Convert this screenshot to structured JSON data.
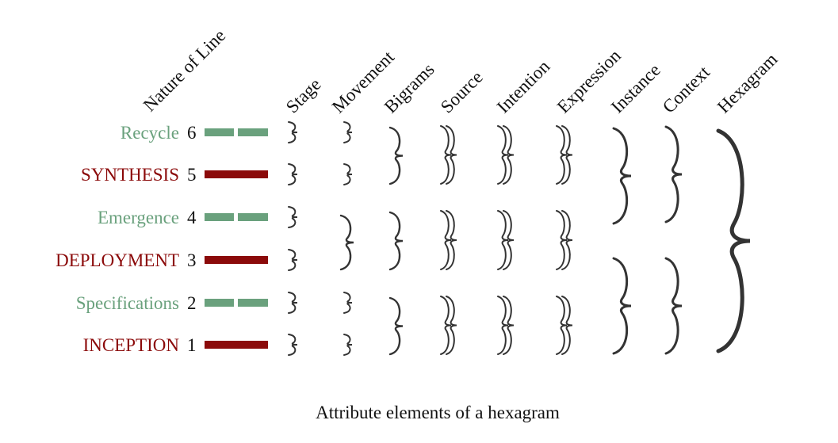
{
  "columns": [
    {
      "id": "nature",
      "label": "Nature of Line"
    },
    {
      "id": "stage",
      "label": "Stage"
    },
    {
      "id": "movement",
      "label": "Movement"
    },
    {
      "id": "bigrams",
      "label": "Bigrams"
    },
    {
      "id": "source",
      "label": "Source"
    },
    {
      "id": "intention",
      "label": "Intention"
    },
    {
      "id": "expression",
      "label": "Expression"
    },
    {
      "id": "instance",
      "label": "Instance"
    },
    {
      "id": "context",
      "label": "Context"
    },
    {
      "id": "hexagram",
      "label": "Hexagram"
    }
  ],
  "lines": [
    {
      "number": "6",
      "name": "Recycle",
      "type": "yin"
    },
    {
      "number": "5",
      "name": "SYNTHESIS",
      "type": "yang"
    },
    {
      "number": "4",
      "name": "Emergence",
      "type": "yin"
    },
    {
      "number": "3",
      "name": "DEPLOYMENT",
      "type": "yang"
    },
    {
      "number": "2",
      "name": "Specifications",
      "type": "yin"
    },
    {
      "number": "1",
      "name": "INCEPTION",
      "type": "yang"
    }
  ],
  "colors": {
    "yin": "#6aa17d",
    "yang": "#8b0a0a",
    "text": "#111111",
    "brace": "#333333"
  },
  "caption": "Attribute elements of a hexagram"
}
